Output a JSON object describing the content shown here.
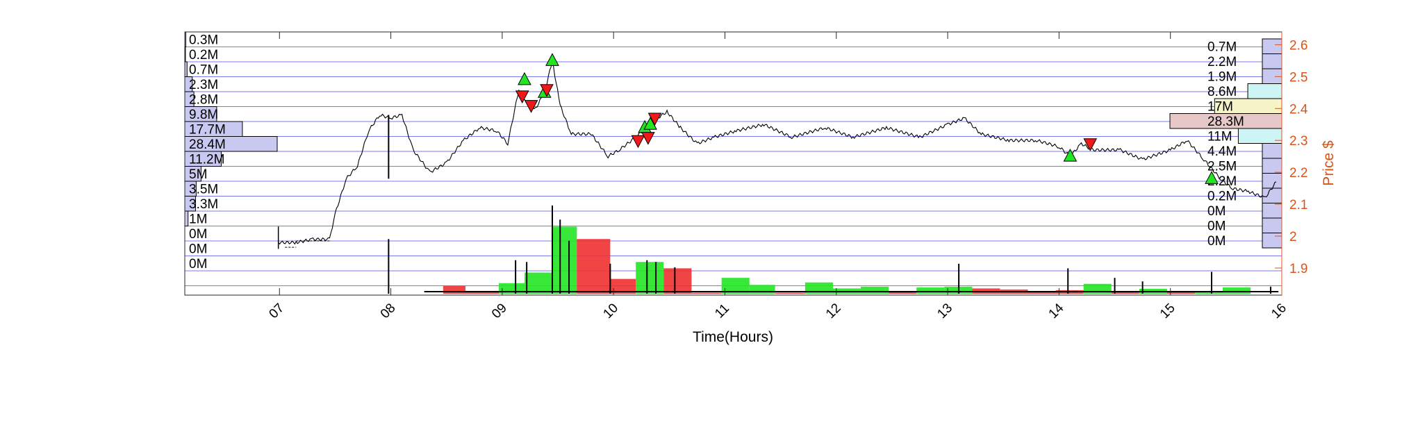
{
  "chart_data": {
    "type": "line",
    "title": "",
    "xlabel": "Time(Hours)",
    "ylabel_right": "Price $",
    "x_ticks": [
      "07",
      "08",
      "09",
      "10",
      "11",
      "12",
      "13",
      "14",
      "15",
      "16"
    ],
    "x_range_hours": [
      6.15,
      16.0
    ],
    "y_ticks": [
      "1.9",
      "2",
      "2.1",
      "2.2",
      "2.3",
      "2.4",
      "2.5",
      "2.6"
    ],
    "ylim": [
      1.815,
      2.64
    ],
    "grid": "horizontal bins",
    "price_path": [
      [
        6.99,
        1.98
      ],
      [
        7.15,
        1.98
      ],
      [
        7.3,
        1.99
      ],
      [
        7.45,
        1.99
      ],
      [
        7.5,
        2.07
      ],
      [
        7.6,
        2.18
      ],
      [
        7.7,
        2.22
      ],
      [
        7.8,
        2.33
      ],
      [
        7.9,
        2.38
      ],
      [
        8.0,
        2.37
      ],
      [
        8.1,
        2.38
      ],
      [
        8.2,
        2.27
      ],
      [
        8.35,
        2.2
      ],
      [
        8.5,
        2.23
      ],
      [
        8.65,
        2.3
      ],
      [
        8.8,
        2.34
      ],
      [
        8.95,
        2.33
      ],
      [
        9.05,
        2.29
      ],
      [
        9.15,
        2.46
      ],
      [
        9.22,
        2.42
      ],
      [
        9.3,
        2.4
      ],
      [
        9.38,
        2.45
      ],
      [
        9.45,
        2.55
      ],
      [
        9.52,
        2.41
      ],
      [
        9.62,
        2.32
      ],
      [
        9.8,
        2.32
      ],
      [
        9.95,
        2.25
      ],
      [
        10.05,
        2.27
      ],
      [
        10.2,
        2.31
      ],
      [
        10.35,
        2.36
      ],
      [
        10.48,
        2.39
      ],
      [
        10.6,
        2.34
      ],
      [
        10.75,
        2.29
      ],
      [
        10.9,
        2.31
      ],
      [
        11.1,
        2.33
      ],
      [
        11.35,
        2.35
      ],
      [
        11.6,
        2.31
      ],
      [
        11.9,
        2.34
      ],
      [
        12.15,
        2.31
      ],
      [
        12.45,
        2.34
      ],
      [
        12.75,
        2.31
      ],
      [
        13.0,
        2.35
      ],
      [
        13.15,
        2.37
      ],
      [
        13.3,
        2.32
      ],
      [
        13.55,
        2.3
      ],
      [
        13.8,
        2.3
      ],
      [
        14.0,
        2.28
      ],
      [
        14.1,
        2.25
      ],
      [
        14.2,
        2.29
      ],
      [
        14.3,
        2.27
      ],
      [
        14.55,
        2.27
      ],
      [
        14.75,
        2.24
      ],
      [
        15.0,
        2.27
      ],
      [
        15.15,
        2.3
      ],
      [
        15.3,
        2.24
      ],
      [
        15.45,
        2.18
      ],
      [
        15.55,
        2.15
      ],
      [
        15.7,
        2.14
      ],
      [
        15.85,
        2.12
      ],
      [
        15.95,
        2.17
      ]
    ],
    "buy_signals": [
      [
        9.2,
        2.49
      ],
      [
        9.38,
        2.45
      ],
      [
        9.45,
        2.55
      ],
      [
        10.28,
        2.34
      ],
      [
        10.33,
        2.35
      ],
      [
        14.1,
        2.25
      ],
      [
        15.37,
        2.18
      ]
    ],
    "sell_signals": [
      [
        9.18,
        2.44
      ],
      [
        9.26,
        2.41
      ],
      [
        9.4,
        2.46
      ],
      [
        10.22,
        2.3
      ],
      [
        10.31,
        2.31
      ],
      [
        10.37,
        2.37
      ],
      [
        14.28,
        2.29
      ]
    ],
    "volume_profile_left": {
      "labels": [
        "0.3M",
        "0.2M",
        "0.7M",
        "2.3M",
        "2.8M",
        "9.8M",
        "17.7M",
        "28.4M",
        "11.2M",
        "5M",
        "3.5M",
        "3.3M",
        "1M",
        "0M",
        "0M",
        "0M"
      ],
      "values": [
        0.3,
        0.2,
        0.7,
        2.3,
        2.8,
        9.8,
        17.7,
        28.4,
        11.2,
        5,
        3.5,
        3.3,
        1,
        0,
        0,
        0
      ]
    },
    "volume_profile_right": {
      "labels": [
        "0.7M",
        "2.2M",
        "1.9M",
        "8.6M",
        "17M",
        "28.3M",
        "11M",
        "4.4M",
        "2.5M",
        "2.2M",
        "0.2M",
        "0M",
        "0M",
        "0M"
      ],
      "values": [
        0.7,
        2.2,
        1.9,
        8.6,
        17,
        28.3,
        11,
        4.4,
        2.5,
        2.2,
        0.2,
        0,
        0,
        0
      ],
      "highlight_colors": [
        "#C8C8F0",
        "#C8C8F0",
        "#C8C8F0",
        "#CDF5F5",
        "#F5F5C8",
        "#E6C8C8",
        "#CDF5F5",
        "#C8C8F0",
        "#C8C8F0",
        "#C8C8F0",
        "#C8C8F0",
        "#C8C8F0",
        "#C8C8F0",
        "#C8C8F0"
      ]
    },
    "volume_blocks": [
      {
        "start": 8.47,
        "end": 8.67,
        "value": 0.22,
        "color": "red"
      },
      {
        "start": 8.67,
        "end": 8.97,
        "value": 0.08,
        "color": "red"
      },
      {
        "start": 8.97,
        "end": 9.2,
        "value": 0.3,
        "color": "green"
      },
      {
        "start": 9.2,
        "end": 9.45,
        "value": 0.6,
        "color": "green"
      },
      {
        "start": 9.45,
        "end": 9.67,
        "value": 1.9,
        "color": "green"
      },
      {
        "start": 9.67,
        "end": 9.97,
        "value": 1.55,
        "color": "red"
      },
      {
        "start": 9.97,
        "end": 10.2,
        "value": 0.42,
        "color": "red"
      },
      {
        "start": 10.2,
        "end": 10.45,
        "value": 0.9,
        "color": "green"
      },
      {
        "start": 10.45,
        "end": 10.7,
        "value": 0.72,
        "color": "red"
      },
      {
        "start": 10.7,
        "end": 10.97,
        "value": 0.03,
        "color": "red"
      },
      {
        "start": 10.97,
        "end": 11.22,
        "value": 0.45,
        "color": "green"
      },
      {
        "start": 11.22,
        "end": 11.45,
        "value": 0.25,
        "color": "green"
      },
      {
        "start": 11.45,
        "end": 11.72,
        "value": 0.03,
        "color": "red"
      },
      {
        "start": 11.72,
        "end": 11.97,
        "value": 0.32,
        "color": "green"
      },
      {
        "start": 11.97,
        "end": 12.22,
        "value": 0.15,
        "color": "green"
      },
      {
        "start": 12.22,
        "end": 12.47,
        "value": 0.2,
        "color": "green"
      },
      {
        "start": 12.47,
        "end": 12.72,
        "value": 0.04,
        "color": "red"
      },
      {
        "start": 12.72,
        "end": 12.97,
        "value": 0.18,
        "color": "green"
      },
      {
        "start": 12.97,
        "end": 13.22,
        "value": 0.2,
        "color": "green"
      },
      {
        "start": 13.22,
        "end": 13.47,
        "value": 0.15,
        "color": "red"
      },
      {
        "start": 13.47,
        "end": 13.72,
        "value": 0.12,
        "color": "red"
      },
      {
        "start": 13.72,
        "end": 13.97,
        "value": 0.07,
        "color": "red"
      },
      {
        "start": 13.97,
        "end": 14.22,
        "value": 0.1,
        "color": "red"
      },
      {
        "start": 14.22,
        "end": 14.47,
        "value": 0.28,
        "color": "green"
      },
      {
        "start": 14.47,
        "end": 14.72,
        "value": 0.07,
        "color": "red"
      },
      {
        "start": 14.72,
        "end": 14.97,
        "value": 0.14,
        "color": "green"
      },
      {
        "start": 14.97,
        "end": 15.22,
        "value": 0.05,
        "color": "red"
      },
      {
        "start": 15.22,
        "end": 15.47,
        "value": 0.04,
        "color": "green"
      },
      {
        "start": 15.47,
        "end": 15.72,
        "value": 0.18,
        "color": "green"
      }
    ],
    "volume_spikes": [
      [
        7.98,
        1.55
      ],
      [
        9.12,
        0.95
      ],
      [
        9.22,
        0.9
      ],
      [
        9.45,
        2.5
      ],
      [
        9.52,
        2.1
      ],
      [
        9.6,
        1.5
      ],
      [
        9.97,
        0.85
      ],
      [
        10.3,
        0.95
      ],
      [
        10.38,
        0.9
      ],
      [
        10.55,
        0.75
      ],
      [
        13.1,
        0.85
      ],
      [
        14.08,
        0.72
      ],
      [
        14.5,
        0.45
      ],
      [
        14.75,
        0.35
      ],
      [
        15.37,
        0.62
      ],
      [
        15.9,
        0.2
      ]
    ],
    "volume_ylim": [
      0,
      3.6
    ]
  }
}
